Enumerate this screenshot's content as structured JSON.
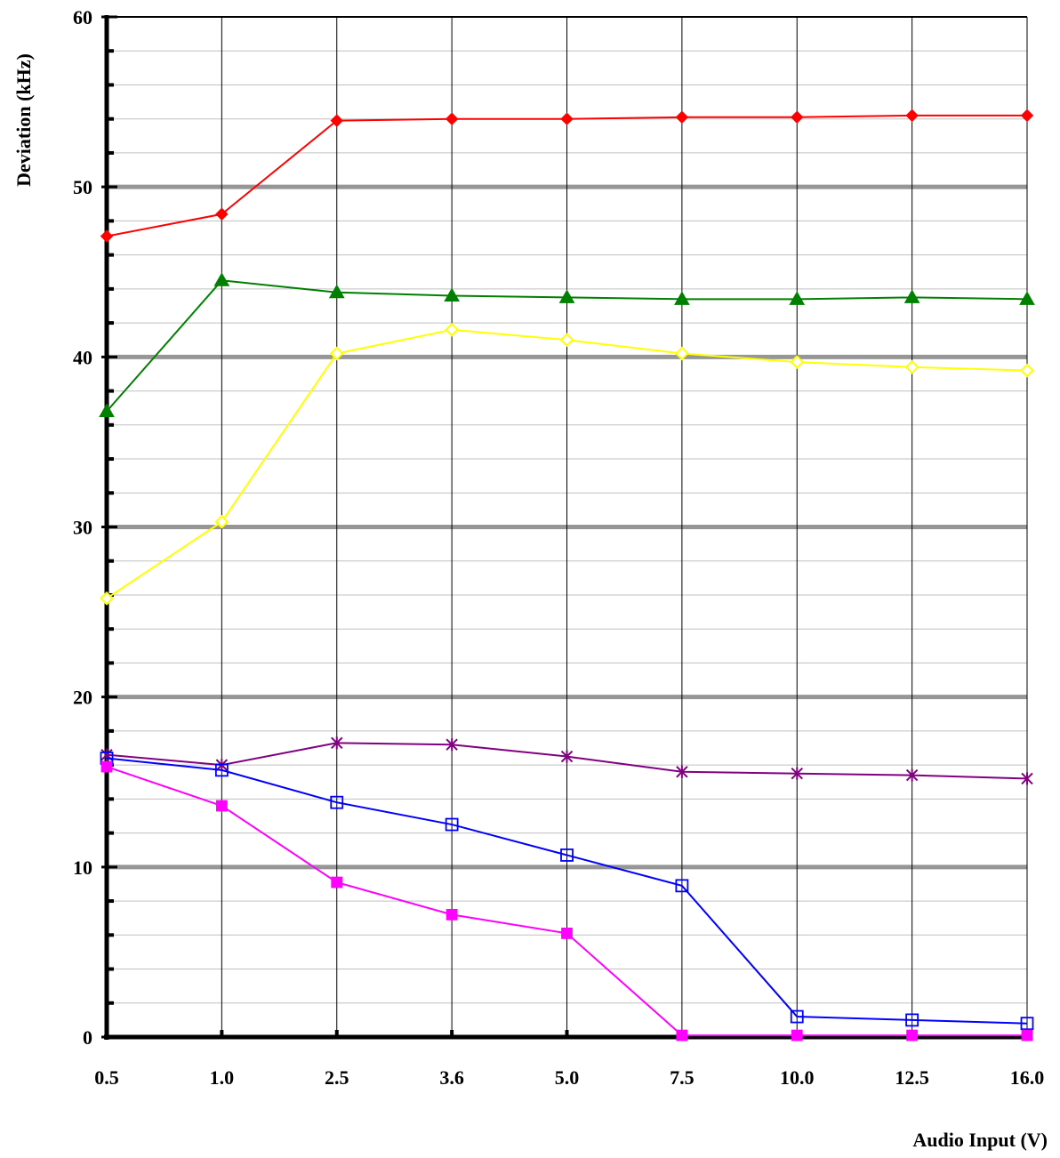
{
  "chart_data": {
    "type": "line",
    "title": "",
    "xlabel": "Audio Input (V)",
    "ylabel": "Deviation (kHz)",
    "categories": [
      "0.5",
      "1.0",
      "2.5",
      "3.6",
      "5.0",
      "7.5",
      "10.0",
      "12.5",
      "16.0"
    ],
    "ylim": [
      0,
      60
    ],
    "y_ticks": [
      "0",
      "10",
      "20",
      "30",
      "40",
      "50",
      "60"
    ],
    "grid": {
      "major_y": true,
      "minor_y": true,
      "vertical": true
    },
    "legend": "none",
    "series": [
      {
        "color": "#ff0000",
        "marker": "diamond-filled",
        "values": [
          47.1,
          48.4,
          53.9,
          54.0,
          54.0,
          54.1,
          54.1,
          54.2,
          54.2
        ]
      },
      {
        "color": "#008000",
        "marker": "triangle-filled",
        "values": [
          36.8,
          44.5,
          43.8,
          43.6,
          43.5,
          43.4,
          43.4,
          43.5,
          43.4
        ]
      },
      {
        "color": "#ffff00",
        "marker": "diamond-open",
        "values": [
          25.8,
          30.3,
          40.2,
          41.6,
          41.0,
          40.2,
          39.7,
          39.4,
          39.2
        ]
      },
      {
        "color": "#800080",
        "marker": "star",
        "values": [
          16.6,
          16.0,
          17.3,
          17.2,
          16.5,
          15.6,
          15.5,
          15.4,
          15.2
        ]
      },
      {
        "color": "#0000ff",
        "marker": "square-open",
        "values": [
          16.4,
          15.7,
          13.8,
          12.5,
          10.7,
          8.9,
          1.2,
          1.0,
          0.8
        ]
      },
      {
        "color": "#ff00ff",
        "marker": "square-filled",
        "values": [
          15.9,
          13.6,
          9.1,
          7.2,
          6.1,
          0.1,
          0.1,
          0.1,
          0.1
        ]
      }
    ]
  }
}
